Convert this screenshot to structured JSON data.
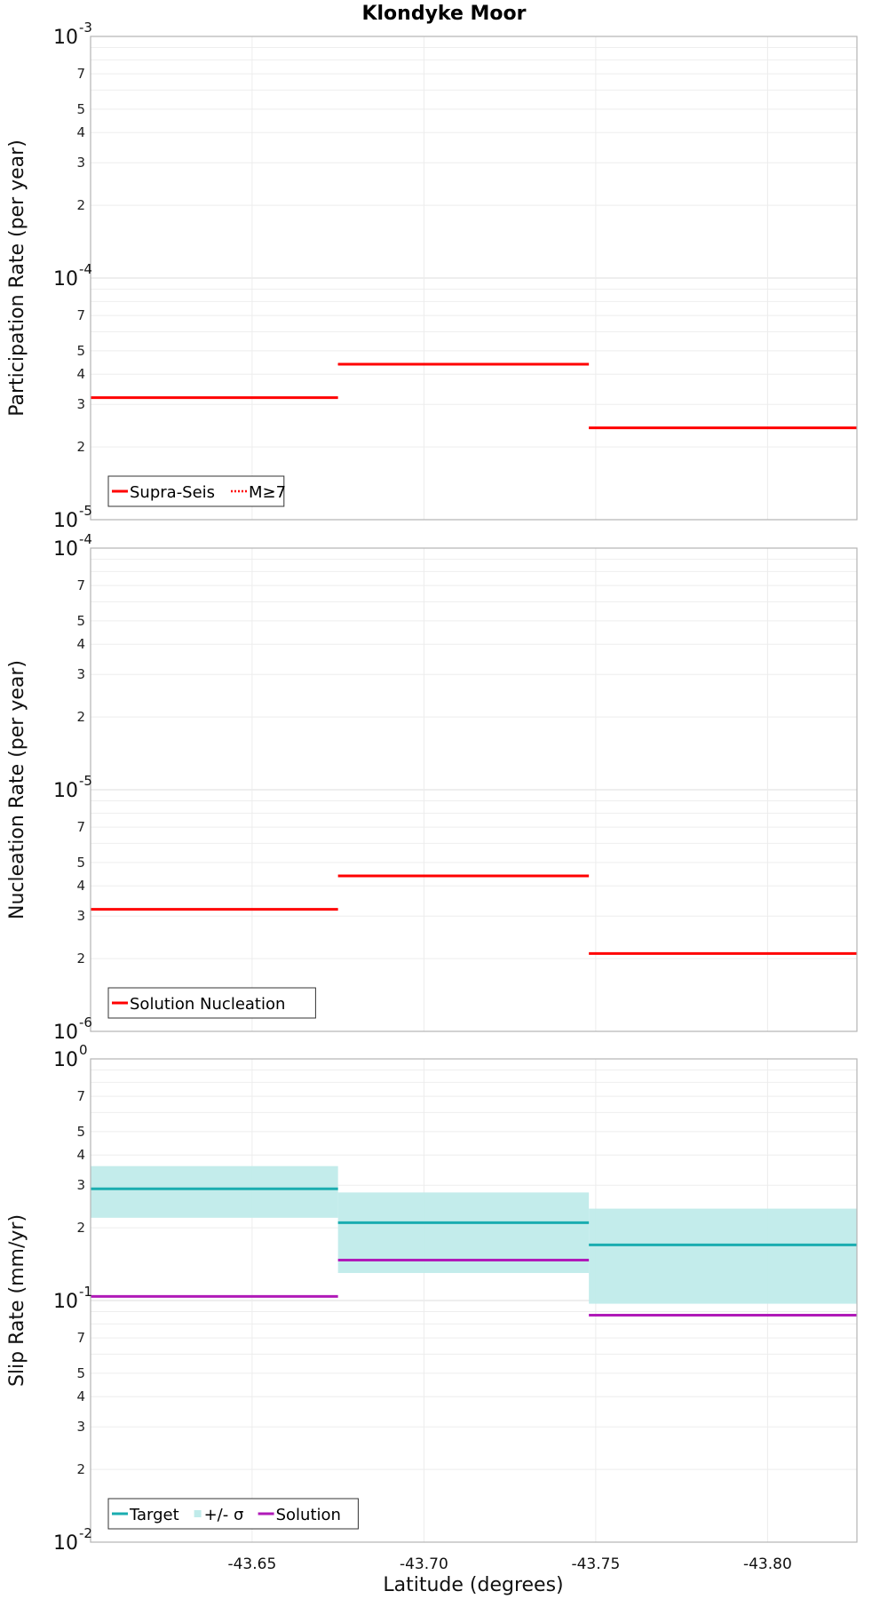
{
  "chart_data": {
    "title": "Klondyke Moor",
    "xlabel": "Latitude (degrees)",
    "xlim": [
      -43.603,
      -43.826
    ],
    "xticks": [
      -43.65,
      -43.7,
      -43.75,
      -43.8
    ],
    "xtick_labels": [
      "-43.65",
      "-43.70",
      "-43.75",
      "-43.80"
    ],
    "panels": [
      {
        "type": "step-line",
        "ylabel": "Participation Rate (per year)",
        "yscale": "log",
        "ylim_exp": [
          -5,
          -3
        ],
        "tick_decades": [
          "10",
          "10",
          "10"
        ],
        "tick_exponents": [
          "-5",
          "-4",
          "-3"
        ],
        "minor_labels": [
          "2",
          "3",
          "4",
          "5",
          "7"
        ],
        "series": [
          {
            "name": "Supra-Seis",
            "color": "#ff0000",
            "style": "solid",
            "segments": [
              {
                "x0": -43.603,
                "x1": -43.675,
                "y": 3.2e-05
              },
              {
                "x0": -43.675,
                "x1": -43.748,
                "y": 4.4e-05
              },
              {
                "x0": -43.748,
                "x1": -43.826,
                "y": 2.4e-05
              }
            ]
          },
          {
            "name": "M≥7",
            "color": "#ff0000",
            "style": "dotted",
            "segments": [
              {
                "x0": -43.603,
                "x1": -43.675,
                "y": 3.2e-05
              },
              {
                "x0": -43.675,
                "x1": -43.748,
                "y": 4.4e-05
              },
              {
                "x0": -43.748,
                "x1": -43.826,
                "y": 2.4e-05
              }
            ]
          }
        ],
        "legend": [
          {
            "label": "Supra-Seis",
            "kind": "line",
            "color": "#ff0000"
          },
          {
            "label": "M≥7",
            "kind": "dotted",
            "color": "#ff0000"
          }
        ],
        "legend_position": "bottom-left"
      },
      {
        "type": "step-line",
        "ylabel": "Nucleation Rate (per year)",
        "yscale": "log",
        "ylim_exp": [
          -6,
          -4
        ],
        "tick_decades": [
          "10",
          "10",
          "10"
        ],
        "tick_exponents": [
          "-6",
          "-5",
          "-4"
        ],
        "minor_labels": [
          "2",
          "3",
          "4",
          "5",
          "7"
        ],
        "series": [
          {
            "name": "Solution Nucleation",
            "color": "#ff0000",
            "style": "solid",
            "segments": [
              {
                "x0": -43.603,
                "x1": -43.675,
                "y": 3.2e-06
              },
              {
                "x0": -43.675,
                "x1": -43.748,
                "y": 4.4e-06
              },
              {
                "x0": -43.748,
                "x1": -43.826,
                "y": 2.1e-06
              }
            ]
          }
        ],
        "legend": [
          {
            "label": "Solution Nucleation",
            "kind": "line",
            "color": "#ff0000"
          }
        ],
        "legend_position": "bottom-left"
      },
      {
        "type": "step-line",
        "ylabel": "Slip Rate (mm/yr)",
        "yscale": "log",
        "ylim_exp": [
          -2,
          0
        ],
        "tick_decades": [
          "10",
          "10",
          "10"
        ],
        "tick_exponents": [
          "-2",
          "-1",
          "0"
        ],
        "minor_labels": [
          "2",
          "3",
          "4",
          "5",
          "7"
        ],
        "bands": [
          {
            "name": "+/- σ",
            "color": "#c0ebea",
            "segments": [
              {
                "x0": -43.603,
                "x1": -43.675,
                "low": 0.22,
                "high": 0.36
              },
              {
                "x0": -43.675,
                "x1": -43.748,
                "low": 0.13,
                "high": 0.28
              },
              {
                "x0": -43.748,
                "x1": -43.826,
                "low": 0.097,
                "high": 0.24
              }
            ]
          }
        ],
        "series": [
          {
            "name": "Target",
            "color": "#1aadb0",
            "style": "solid",
            "segments": [
              {
                "x0": -43.603,
                "x1": -43.675,
                "y": 0.29
              },
              {
                "x0": -43.675,
                "x1": -43.748,
                "y": 0.21
              },
              {
                "x0": -43.748,
                "x1": -43.826,
                "y": 0.17
              }
            ]
          },
          {
            "name": "Solution",
            "color": "#b01ab8",
            "style": "solid",
            "segments": [
              {
                "x0": -43.603,
                "x1": -43.675,
                "y": 0.104
              },
              {
                "x0": -43.675,
                "x1": -43.748,
                "y": 0.147
              },
              {
                "x0": -43.748,
                "x1": -43.826,
                "y": 0.087
              }
            ]
          }
        ],
        "legend": [
          {
            "label": "Target",
            "kind": "line",
            "color": "#1aadb0"
          },
          {
            "label": "+/- σ",
            "kind": "box",
            "color": "#c0ebea"
          },
          {
            "label": "Solution",
            "kind": "line",
            "color": "#b01ab8"
          }
        ],
        "legend_position": "bottom-left"
      }
    ]
  }
}
